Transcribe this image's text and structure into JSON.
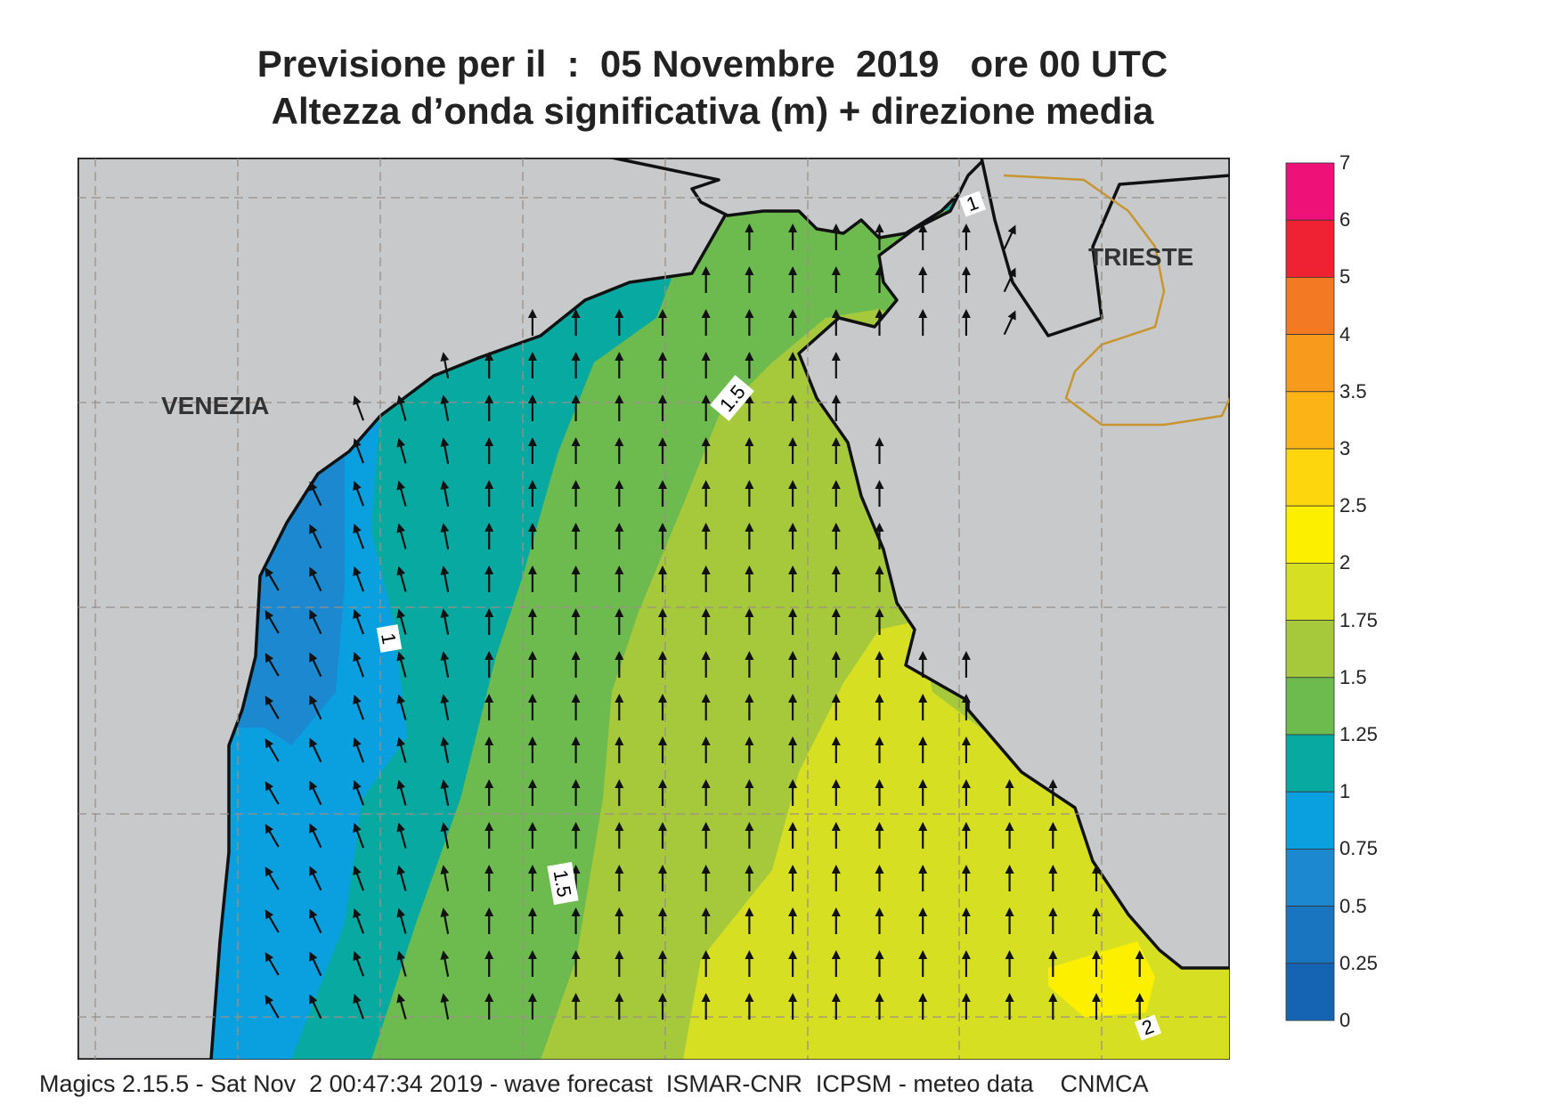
{
  "title": {
    "line1": "Previsione per il  :  05 Novembre  2019   ore 00 UTC",
    "line2": "Altezza d’onda significativa (m) + direzione media"
  },
  "cities": {
    "venezia": "VENEZIA",
    "trieste": "TRIESTE"
  },
  "contour_labels": [
    "1.5",
    "1",
    "1.5",
    "1",
    "2"
  ],
  "legend": {
    "ticks": [
      "7",
      "6",
      "5",
      "4",
      "3.5",
      "3",
      "2.5",
      "2",
      "1.75",
      "1.5",
      "1.25",
      "1",
      "0.75",
      "0.5",
      "0.25",
      "0"
    ],
    "colors": [
      "#ee1177",
      "#ee2233",
      "#f37a22",
      "#f89a1c",
      "#fcb316",
      "#fdd60e",
      "#fcf000",
      "#d7df23",
      "#a6c93b",
      "#6dbb4f",
      "#08a9a0",
      "#0aa0df",
      "#1c88cf",
      "#1975c0",
      "#1464b3"
    ]
  },
  "footer": "Magics 2.15.5 - Sat Nov  2 00:47:34 2019 - wave forecast  ISMAR-CNR  ICPSM - meteo data    CNMCA",
  "colors": {
    "land": "#c8c9cb",
    "coast": "#111111",
    "border": "#c8952f",
    "grid": "#9b8f86",
    "arrow": "#111111"
  }
}
